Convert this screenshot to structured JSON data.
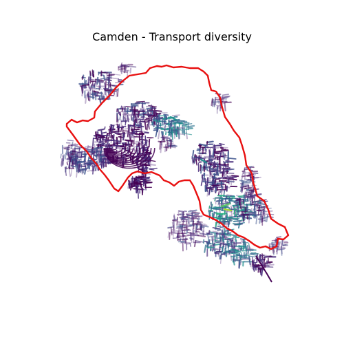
{
  "title": "Camden - Transport diversity",
  "colors": {
    "boundary": "#e81010",
    "background": "#ffffff",
    "palette": [
      "#440154",
      "#472c7a",
      "#3b518b",
      "#2c718e",
      "#21908d",
      "#27ad81",
      "#5cc863",
      "#aadc32",
      "#fde725"
    ],
    "faded": "#7a5a99"
  },
  "layers": [
    {
      "name": "street-network",
      "kind": "lines"
    },
    {
      "name": "borough-boundary",
      "kind": "outline"
    }
  ]
}
